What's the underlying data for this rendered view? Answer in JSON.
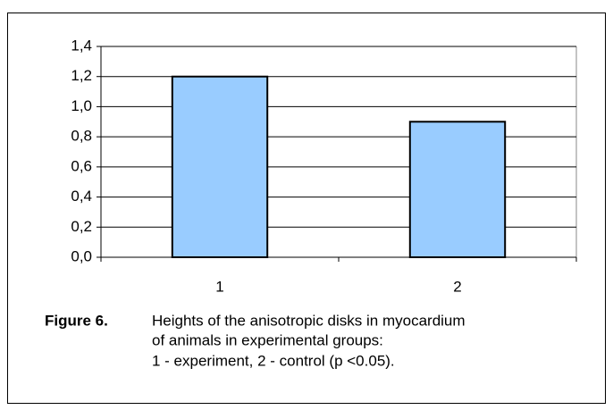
{
  "chart_data": {
    "type": "bar",
    "categories": [
      "1",
      "2"
    ],
    "values": [
      1.2,
      0.9
    ],
    "color": "#99ccff",
    "ylim": [
      0,
      1.4
    ],
    "yticks": [
      {
        "value": 0,
        "label": "0,0"
      },
      {
        "value": 0.2,
        "label": "0,2"
      },
      {
        "value": 0.4,
        "label": "0,4"
      },
      {
        "value": 0.6,
        "label": "0,6"
      },
      {
        "value": 0.8,
        "label": "0,8"
      },
      {
        "value": 1.0,
        "label": "1,0"
      },
      {
        "value": 1.2,
        "label": "1,2"
      },
      {
        "value": 1.4,
        "label": "1,4"
      }
    ],
    "grid": true,
    "caption_label": "Figure 6.",
    "caption_lines": [
      "Heights of the anisotropic disks in myocardium",
      "of animals in experimental groups:",
      "1 - experiment, 2 - control (p <0.05)."
    ]
  }
}
